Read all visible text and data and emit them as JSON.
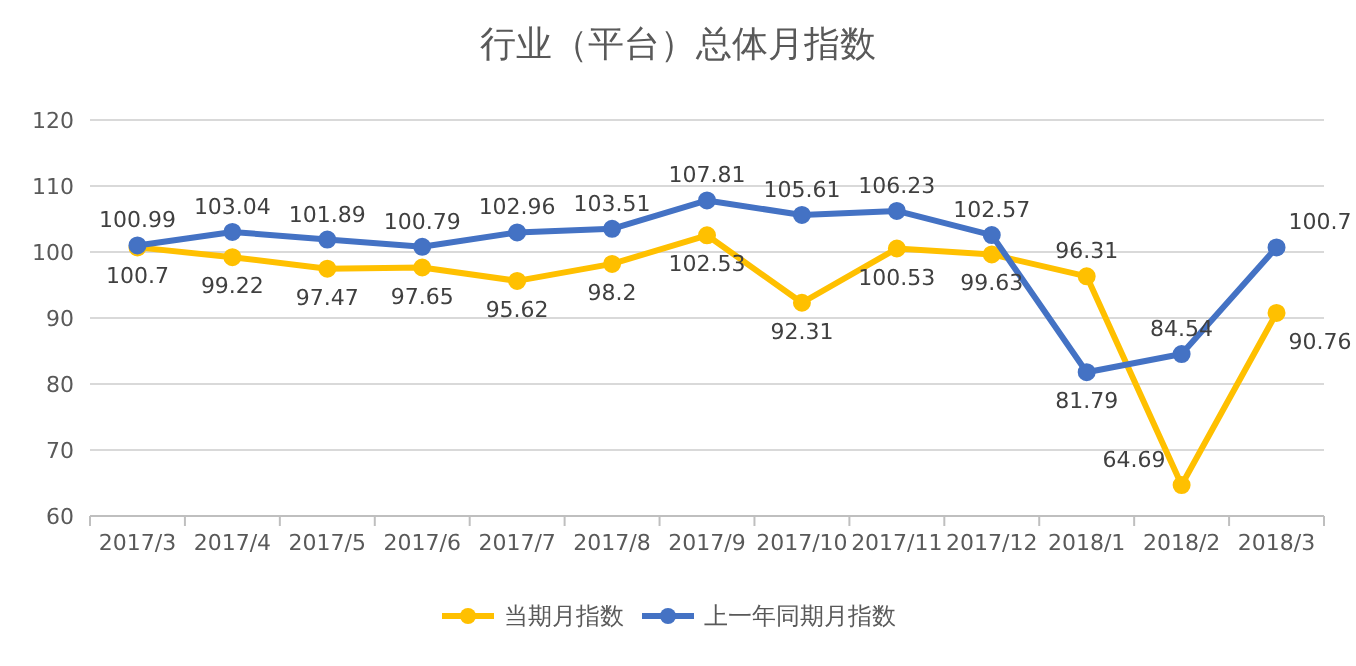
{
  "chart_data": {
    "type": "line",
    "title": "行业（平台）总体月指数",
    "categories": [
      "2017/3",
      "2017/4",
      "2017/5",
      "2017/6",
      "2017/7",
      "2017/8",
      "2017/9",
      "2017/10",
      "2017/11",
      "2017/12",
      "2018/1",
      "2018/2",
      "2018/3"
    ],
    "series": [
      {
        "name": "当期月指数",
        "color": "#ffc000",
        "values": [
          100.7,
          99.22,
          97.47,
          97.65,
          95.62,
          98.2,
          102.53,
          92.31,
          100.53,
          99.63,
          96.31,
          64.69,
          90.76
        ]
      },
      {
        "name": "上一年同期月指数",
        "color": "#4472c4",
        "values": [
          100.99,
          103.04,
          101.89,
          100.79,
          102.96,
          103.51,
          107.81,
          105.61,
          106.23,
          102.57,
          81.79,
          84.54,
          100.7
        ]
      }
    ],
    "ylim": [
      60,
      120
    ],
    "yticks": [
      60,
      70,
      80,
      90,
      100,
      110,
      120
    ],
    "grid": "y",
    "legend": "bottom",
    "marker": "circle",
    "data_labels": true
  }
}
